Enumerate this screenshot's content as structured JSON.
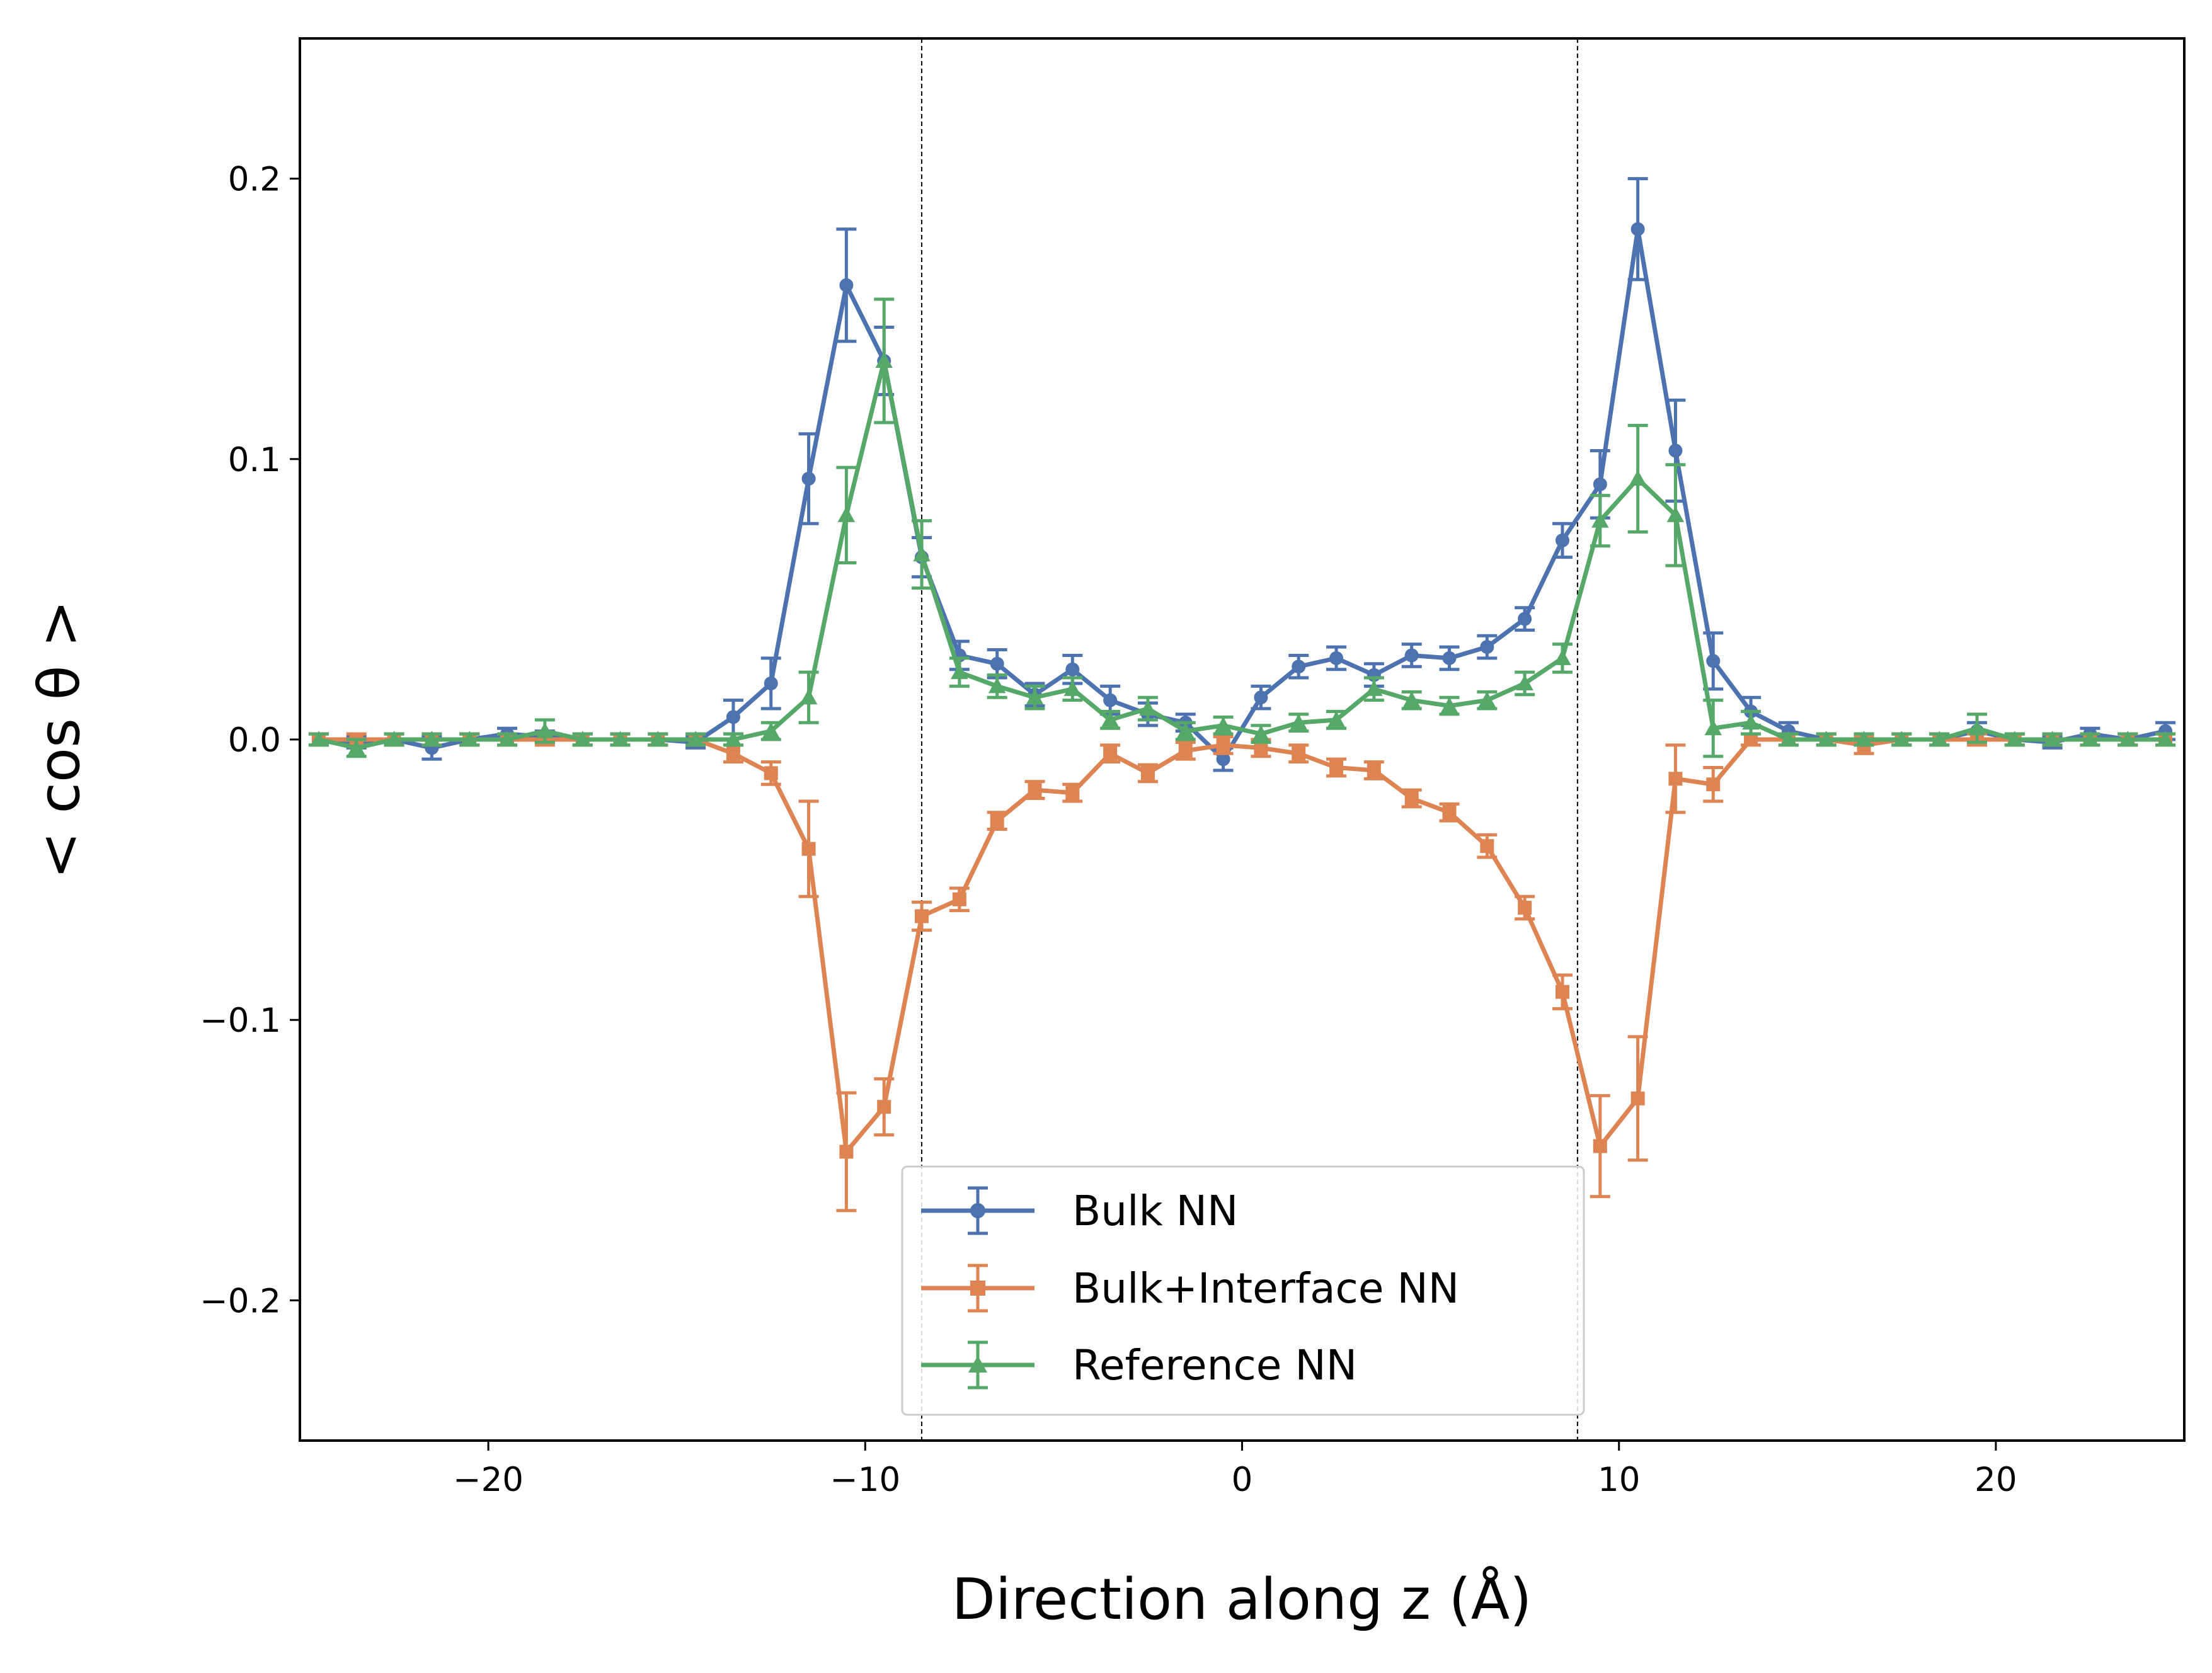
{
  "chart_data": {
    "type": "line",
    "xlabel": "Direction along z (Å)",
    "ylabel": "< cos θ >",
    "xlim": [
      -25,
      25
    ],
    "ylim": [
      -0.25,
      0.25
    ],
    "x_ticks": [
      -20,
      -10,
      0,
      10,
      20
    ],
    "x_tick_labels": [
      "−20",
      "−10",
      "0",
      "10",
      "20"
    ],
    "y_ticks": [
      -0.2,
      -0.1,
      0.0,
      0.1,
      0.2
    ],
    "y_tick_labels": [
      "−0.2",
      "−0.1",
      "0.0",
      "0.1",
      "0.2"
    ],
    "grid": false,
    "legend_placement": "lower center",
    "vertical_lines": [
      -8.5,
      8.9
    ],
    "x": [
      -24.5,
      -23.5,
      -22.5,
      -21.5,
      -20.5,
      -19.5,
      -18.5,
      -17.5,
      -16.5,
      -15.5,
      -14.5,
      -13.5,
      -12.5,
      -11.5,
      -10.5,
      -9.5,
      -8.5,
      -7.5,
      -6.5,
      -5.5,
      -4.5,
      -3.5,
      -2.5,
      -1.5,
      -0.5,
      0.5,
      1.5,
      2.5,
      3.5,
      4.5,
      5.5,
      6.5,
      7.5,
      8.5,
      9.5,
      10.5,
      11.5,
      12.5,
      13.5,
      14.5,
      15.5,
      16.5,
      17.5,
      18.5,
      19.5,
      20.5,
      21.5,
      22.5,
      23.5,
      24.5
    ],
    "series": [
      {
        "name": "Bulk NN",
        "color": "#4c72b0",
        "marker": "circle",
        "values": [
          0.0,
          -0.001,
          0.0,
          -0.003,
          0.0,
          0.002,
          0.001,
          0.0,
          0.0,
          0.0,
          -0.001,
          0.008,
          0.02,
          0.093,
          0.162,
          0.135,
          0.065,
          0.03,
          0.027,
          0.016,
          0.025,
          0.014,
          0.009,
          0.006,
          -0.007,
          0.015,
          0.026,
          0.029,
          0.023,
          0.03,
          0.029,
          0.033,
          0.043,
          0.071,
          0.091,
          0.182,
          0.103,
          0.028,
          0.01,
          0.003,
          0.0,
          0.0,
          0.0,
          0.0,
          0.003,
          0.0,
          -0.001,
          0.002,
          0.0,
          0.003
        ],
        "errors": [
          0.002,
          0.002,
          0.002,
          0.004,
          0.002,
          0.002,
          0.002,
          0.002,
          0.002,
          0.002,
          0.002,
          0.006,
          0.009,
          0.016,
          0.02,
          0.012,
          0.007,
          0.005,
          0.005,
          0.004,
          0.005,
          0.005,
          0.004,
          0.003,
          0.004,
          0.004,
          0.004,
          0.004,
          0.004,
          0.004,
          0.004,
          0.004,
          0.004,
          0.006,
          0.012,
          0.018,
          0.018,
          0.01,
          0.005,
          0.003,
          0.002,
          0.002,
          0.002,
          0.002,
          0.003,
          0.002,
          0.002,
          0.002,
          0.002,
          0.003
        ]
      },
      {
        "name": "Bulk+Interface NN",
        "color": "#dd8452",
        "marker": "square",
        "values": [
          0.0,
          0.0,
          0.0,
          0.0,
          0.0,
          0.0,
          0.0,
          0.0,
          0.0,
          0.0,
          0.0,
          -0.005,
          -0.012,
          -0.039,
          -0.147,
          -0.131,
          -0.063,
          -0.057,
          -0.029,
          -0.018,
          -0.019,
          -0.005,
          -0.012,
          -0.004,
          -0.002,
          -0.003,
          -0.005,
          -0.01,
          -0.011,
          -0.021,
          -0.026,
          -0.038,
          -0.06,
          -0.09,
          -0.145,
          -0.128,
          -0.014,
          -0.016,
          0.0,
          0.0,
          0.0,
          -0.002,
          0.0,
          0.0,
          0.0,
          0.0,
          0.0,
          0.0,
          0.0,
          0.0
        ],
        "errors": [
          0.002,
          0.002,
          0.002,
          0.002,
          0.002,
          0.002,
          0.002,
          0.002,
          0.002,
          0.002,
          0.002,
          0.003,
          0.004,
          0.017,
          0.021,
          0.01,
          0.005,
          0.004,
          0.003,
          0.003,
          0.003,
          0.003,
          0.003,
          0.003,
          0.003,
          0.003,
          0.003,
          0.003,
          0.003,
          0.003,
          0.003,
          0.004,
          0.004,
          0.006,
          0.018,
          0.022,
          0.012,
          0.006,
          0.002,
          0.002,
          0.002,
          0.003,
          0.002,
          0.002,
          0.002,
          0.002,
          0.002,
          0.002,
          0.002,
          0.002
        ]
      },
      {
        "name": "Reference NN",
        "color": "#55a868",
        "marker": "triangle",
        "values": [
          0.0,
          -0.003,
          0.0,
          0.0,
          0.0,
          0.0,
          0.003,
          0.0,
          0.0,
          0.0,
          0.0,
          0.0,
          0.003,
          0.015,
          0.08,
          0.135,
          0.066,
          0.024,
          0.019,
          0.015,
          0.018,
          0.007,
          0.011,
          0.003,
          0.005,
          0.002,
          0.006,
          0.007,
          0.018,
          0.014,
          0.012,
          0.014,
          0.02,
          0.029,
          0.078,
          0.093,
          0.08,
          0.004,
          0.006,
          0.0,
          0.0,
          0.0,
          0.0,
          0.0,
          0.004,
          0.0,
          0.0,
          0.0,
          0.0,
          0.0
        ],
        "errors": [
          0.002,
          0.003,
          0.002,
          0.002,
          0.002,
          0.002,
          0.004,
          0.002,
          0.002,
          0.002,
          0.002,
          0.002,
          0.003,
          0.009,
          0.017,
          0.022,
          0.012,
          0.005,
          0.004,
          0.004,
          0.004,
          0.003,
          0.004,
          0.003,
          0.003,
          0.003,
          0.003,
          0.003,
          0.004,
          0.003,
          0.003,
          0.003,
          0.004,
          0.005,
          0.009,
          0.019,
          0.018,
          0.01,
          0.004,
          0.002,
          0.002,
          0.002,
          0.002,
          0.002,
          0.005,
          0.002,
          0.002,
          0.002,
          0.002,
          0.002
        ]
      }
    ]
  }
}
